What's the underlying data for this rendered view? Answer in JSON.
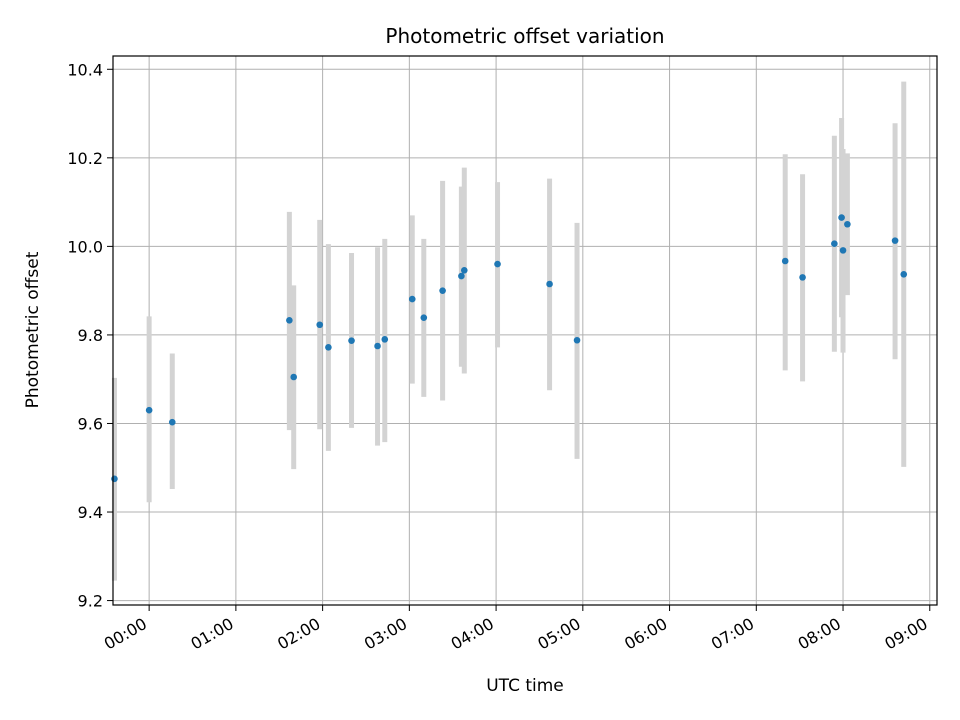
{
  "chart_data": {
    "type": "scatter",
    "title": "Photometric offset variation",
    "xlabel": "UTC time",
    "ylabel": "Photometric offset",
    "x_ticks": [
      "00:00",
      "01:00",
      "02:00",
      "03:00",
      "04:00",
      "05:00",
      "06:00",
      "07:00",
      "08:00",
      "09:00"
    ],
    "y_ticks": [
      "9.2",
      "9.4",
      "9.6",
      "9.8",
      "10.0",
      "10.2",
      "10.4"
    ],
    "xlim": [
      "-00:25",
      "09:05"
    ],
    "ylim": [
      9.19,
      10.43
    ],
    "grid": true,
    "colors": {
      "point": "#1f77b4",
      "errorbar": "#d3d3d3",
      "grid": "#b0b0b0"
    },
    "points": [
      {
        "x": "-00:24",
        "y": 9.475,
        "err_low": 9.245,
        "err_high": 9.703
      },
      {
        "x": "00:00",
        "y": 9.63,
        "err_low": 9.422,
        "err_high": 9.842
      },
      {
        "x": "00:16",
        "y": 9.603,
        "err_low": 9.452,
        "err_high": 9.758
      },
      {
        "x": "01:37",
        "y": 9.833,
        "err_low": 9.585,
        "err_high": 10.078
      },
      {
        "x": "01:40",
        "y": 9.705,
        "err_low": 9.497,
        "err_high": 9.912
      },
      {
        "x": "01:58",
        "y": 9.823,
        "err_low": 9.587,
        "err_high": 10.06
      },
      {
        "x": "02:04",
        "y": 9.772,
        "err_low": 9.538,
        "err_high": 10.005
      },
      {
        "x": "02:20",
        "y": 9.787,
        "err_low": 9.59,
        "err_high": 9.985
      },
      {
        "x": "02:38",
        "y": 9.775,
        "err_low": 9.55,
        "err_high": 9.998
      },
      {
        "x": "02:43",
        "y": 9.79,
        "err_low": 9.558,
        "err_high": 10.017
      },
      {
        "x": "03:02",
        "y": 9.881,
        "err_low": 9.69,
        "err_high": 10.07
      },
      {
        "x": "03:10",
        "y": 9.839,
        "err_low": 9.66,
        "err_high": 10.017
      },
      {
        "x": "03:23",
        "y": 9.9,
        "err_low": 9.652,
        "err_high": 10.148
      },
      {
        "x": "03:36",
        "y": 9.933,
        "err_low": 9.728,
        "err_high": 10.135
      },
      {
        "x": "03:38",
        "y": 9.946,
        "err_low": 9.713,
        "err_high": 10.178
      },
      {
        "x": "04:01",
        "y": 9.96,
        "err_low": 9.772,
        "err_high": 10.145
      },
      {
        "x": "04:37",
        "y": 9.915,
        "err_low": 9.675,
        "err_high": 10.153
      },
      {
        "x": "04:56",
        "y": 9.788,
        "err_low": 9.52,
        "err_high": 10.053
      },
      {
        "x": "07:20",
        "y": 9.967,
        "err_low": 9.72,
        "err_high": 10.208
      },
      {
        "x": "07:32",
        "y": 9.93,
        "err_low": 9.695,
        "err_high": 10.163
      },
      {
        "x": "07:54",
        "y": 10.006,
        "err_low": 9.762,
        "err_high": 10.25
      },
      {
        "x": "07:59",
        "y": 10.065,
        "err_low": 9.84,
        "err_high": 10.29
      },
      {
        "x": "08:00",
        "y": 9.991,
        "err_low": 9.76,
        "err_high": 10.22
      },
      {
        "x": "08:03",
        "y": 10.05,
        "err_low": 9.89,
        "err_high": 10.21
      },
      {
        "x": "08:36",
        "y": 10.013,
        "err_low": 9.745,
        "err_high": 10.278
      },
      {
        "x": "08:42",
        "y": 9.937,
        "err_low": 9.502,
        "err_high": 10.372
      }
    ]
  }
}
